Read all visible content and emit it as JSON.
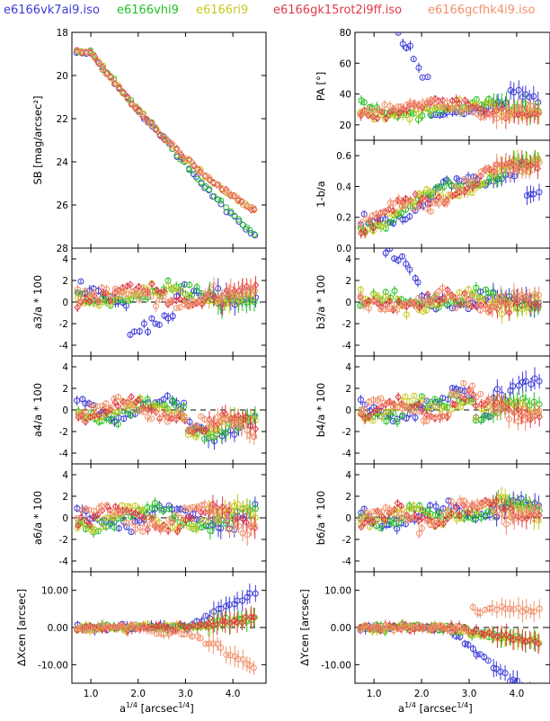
{
  "chart_data": {
    "type": "scatter",
    "legend": [
      {
        "name": "e6166vk7ai9.iso",
        "color": "#3a3ad8"
      },
      {
        "name": "e6166vhi9",
        "color": "#22c022"
      },
      {
        "name": "e6166ri9",
        "color": "#c8c820"
      },
      {
        "name": "e6166gk15rot2i9ff.iso",
        "color": "#e03a48"
      },
      {
        "name": "e6166gcfhk4i9.iso",
        "color": "#f0906a"
      }
    ],
    "x_ticks": [
      "1.0",
      "2.0",
      "3.0",
      "4.0"
    ],
    "xlim": [
      0.6,
      4.7
    ],
    "left_xlabel": "a^(1/4) [arcsec^(1/4)]",
    "right_xlabel": "a^(1/4) [arcsec^(1/4)]",
    "panels": [
      {
        "id": "sb",
        "ylabel": "SB [mag/arcsec²]",
        "ylim": [
          18,
          28
        ],
        "inverted": true,
        "ticks": [
          "18",
          "20",
          "22",
          "24",
          "26",
          "28"
        ]
      },
      {
        "id": "pa",
        "ylabel": "PA [°]",
        "ylim": [
          10,
          80
        ],
        "ticks": [
          "80",
          "60",
          "40",
          "20"
        ]
      },
      {
        "id": "ell",
        "ylabel": "1-b/a",
        "ylim": [
          0.0,
          0.7
        ],
        "ticks": [
          "0.6",
          "0.4",
          "0.2",
          "0.0"
        ]
      },
      {
        "id": "a3",
        "ylabel": "a3/a * 100",
        "ylim": [
          -5,
          5
        ],
        "ticks": [
          "4",
          "2",
          "0",
          "-2",
          "-4"
        ]
      },
      {
        "id": "b3",
        "ylabel": "b3/a * 100",
        "ylim": [
          -5,
          5
        ],
        "ticks": [
          "4",
          "2",
          "0",
          "-2",
          "-4"
        ]
      },
      {
        "id": "a4",
        "ylabel": "a4/a * 100",
        "ylim": [
          -5,
          5
        ],
        "ticks": [
          "4",
          "2",
          "0",
          "-2",
          "-4"
        ]
      },
      {
        "id": "b4",
        "ylabel": "b4/a * 100",
        "ylim": [
          -5,
          5
        ],
        "ticks": [
          "4",
          "2",
          "0",
          "-2",
          "-4"
        ]
      },
      {
        "id": "a6",
        "ylabel": "a6/a * 100",
        "ylim": [
          -5,
          5
        ],
        "ticks": [
          "4",
          "2",
          "0",
          "-2",
          "-4"
        ]
      },
      {
        "id": "b6",
        "ylabel": "b6/a * 100",
        "ylim": [
          -5,
          5
        ],
        "ticks": [
          "4",
          "2",
          "0",
          "-2",
          "-4"
        ]
      },
      {
        "id": "xcen",
        "ylabel": "ΔXcen [arcsec]",
        "ylim": [
          -15,
          15
        ],
        "ticks": [
          "10.00",
          "0.00",
          "-10.00"
        ]
      },
      {
        "id": "ycen",
        "ylabel": "ΔYcen [arcsec]",
        "ylim": [
          -15,
          15
        ],
        "ticks": [
          "10.00",
          "0.00",
          "-10.00"
        ]
      }
    ]
  }
}
